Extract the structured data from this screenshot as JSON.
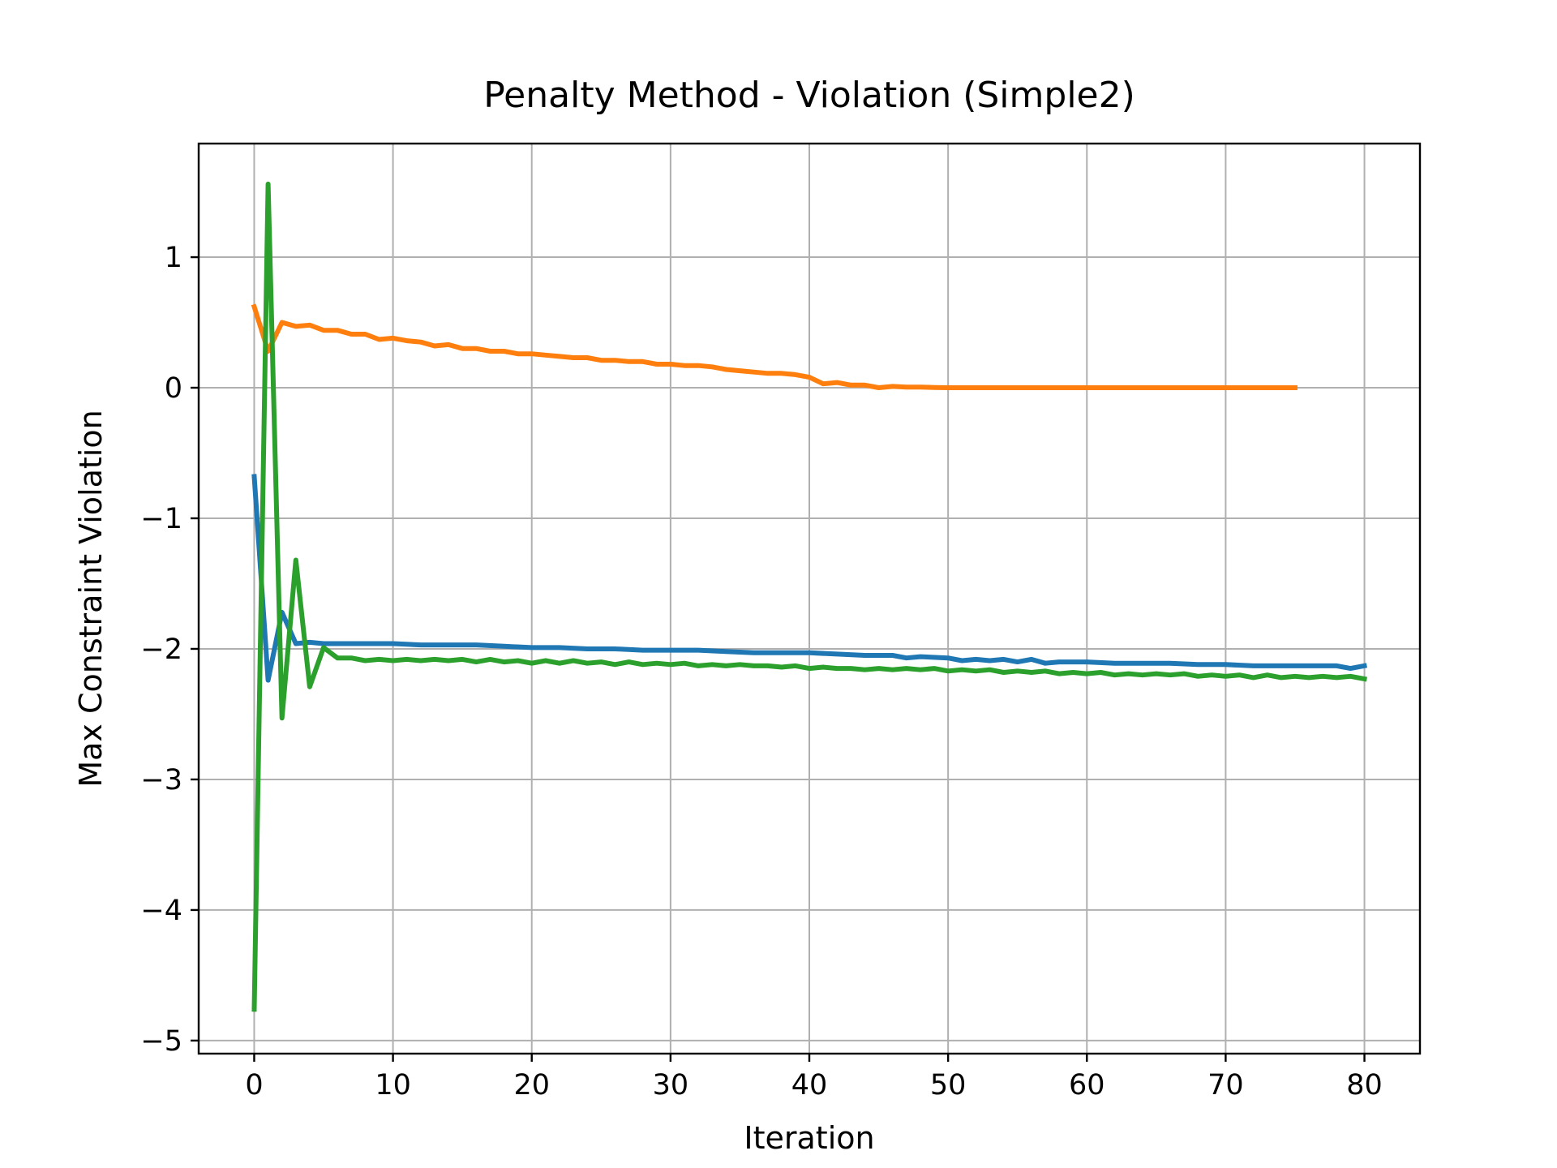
{
  "chart_data": {
    "type": "line",
    "title": "Penalty Method - Violation (Simple2)",
    "xlabel": "Iteration",
    "ylabel": "Max Constraint Violation",
    "xlim": [
      -4,
      84
    ],
    "ylim": [
      -5.1,
      1.87
    ],
    "xticks": [
      0,
      10,
      20,
      30,
      40,
      50,
      60,
      70,
      80
    ],
    "yticks": [
      -5,
      -4,
      -3,
      -2,
      -1,
      0,
      1
    ],
    "grid": true,
    "legend": "none",
    "series": [
      {
        "color": "#1f77b4",
        "x": [
          0,
          1,
          2,
          3,
          4,
          5,
          6,
          8,
          10,
          12,
          14,
          16,
          18,
          20,
          22,
          24,
          26,
          28,
          30,
          32,
          34,
          36,
          38,
          40,
          42,
          44,
          46,
          47,
          48,
          50,
          51,
          52,
          53,
          54,
          55,
          56,
          57,
          58,
          60,
          62,
          64,
          66,
          68,
          70,
          72,
          74,
          76,
          78,
          79,
          80
        ],
        "y": [
          -0.68,
          -2.24,
          -1.72,
          -1.96,
          -1.95,
          -1.96,
          -1.96,
          -1.96,
          -1.96,
          -1.97,
          -1.97,
          -1.97,
          -1.98,
          -1.99,
          -1.99,
          -2.0,
          -2.0,
          -2.01,
          -2.01,
          -2.01,
          -2.02,
          -2.03,
          -2.03,
          -2.03,
          -2.04,
          -2.05,
          -2.05,
          -2.07,
          -2.06,
          -2.07,
          -2.09,
          -2.08,
          -2.09,
          -2.08,
          -2.1,
          -2.08,
          -2.11,
          -2.1,
          -2.1,
          -2.11,
          -2.11,
          -2.11,
          -2.12,
          -2.12,
          -2.13,
          -2.13,
          -2.13,
          -2.13,
          -2.15,
          -2.13
        ]
      },
      {
        "color": "#ff7f0e",
        "x": [
          0,
          1,
          2,
          3,
          4,
          5,
          6,
          7,
          8,
          9,
          10,
          11,
          12,
          13,
          14,
          15,
          16,
          17,
          18,
          19,
          20,
          21,
          22,
          23,
          24,
          25,
          26,
          27,
          28,
          29,
          30,
          31,
          32,
          33,
          34,
          35,
          36,
          37,
          38,
          39,
          40,
          41,
          42,
          43,
          44,
          45,
          46,
          47,
          48,
          49,
          50,
          55,
          60,
          65,
          70,
          75
        ],
        "y": [
          0.62,
          0.28,
          0.5,
          0.47,
          0.48,
          0.44,
          0.44,
          0.41,
          0.41,
          0.37,
          0.38,
          0.36,
          0.35,
          0.32,
          0.33,
          0.3,
          0.3,
          0.28,
          0.28,
          0.26,
          0.26,
          0.25,
          0.24,
          0.23,
          0.23,
          0.21,
          0.21,
          0.2,
          0.2,
          0.18,
          0.18,
          0.17,
          0.17,
          0.16,
          0.14,
          0.13,
          0.12,
          0.11,
          0.11,
          0.1,
          0.08,
          0.03,
          0.04,
          0.02,
          0.02,
          0.0,
          0.01,
          0.005,
          0.005,
          0.002,
          0.0,
          0.0,
          0.0,
          0.0,
          0.0,
          0.0
        ]
      },
      {
        "color": "#2ca02c",
        "x": [
          0,
          1,
          2,
          3,
          4,
          5,
          6,
          7,
          8,
          9,
          10,
          11,
          12,
          13,
          14,
          15,
          16,
          17,
          18,
          19,
          20,
          21,
          22,
          23,
          24,
          25,
          26,
          27,
          28,
          29,
          30,
          31,
          32,
          33,
          34,
          35,
          36,
          37,
          38,
          39,
          40,
          41,
          42,
          43,
          44,
          45,
          46,
          47,
          48,
          49,
          50,
          51,
          52,
          53,
          54,
          55,
          56,
          57,
          58,
          59,
          60,
          61,
          62,
          63,
          64,
          65,
          66,
          67,
          68,
          69,
          70,
          71,
          72,
          73,
          74,
          75,
          76,
          77,
          78,
          79,
          80
        ],
        "y": [
          -4.76,
          1.56,
          -2.53,
          -1.32,
          -2.29,
          -1.99,
          -2.07,
          -2.07,
          -2.09,
          -2.08,
          -2.09,
          -2.08,
          -2.09,
          -2.08,
          -2.09,
          -2.08,
          -2.1,
          -2.08,
          -2.1,
          -2.09,
          -2.11,
          -2.09,
          -2.11,
          -2.09,
          -2.11,
          -2.1,
          -2.12,
          -2.1,
          -2.12,
          -2.11,
          -2.12,
          -2.11,
          -2.13,
          -2.12,
          -2.13,
          -2.12,
          -2.13,
          -2.13,
          -2.14,
          -2.13,
          -2.15,
          -2.14,
          -2.15,
          -2.15,
          -2.16,
          -2.15,
          -2.16,
          -2.15,
          -2.16,
          -2.15,
          -2.17,
          -2.16,
          -2.17,
          -2.16,
          -2.18,
          -2.17,
          -2.18,
          -2.17,
          -2.19,
          -2.18,
          -2.19,
          -2.18,
          -2.2,
          -2.19,
          -2.2,
          -2.19,
          -2.2,
          -2.19,
          -2.21,
          -2.2,
          -2.21,
          -2.2,
          -2.22,
          -2.2,
          -2.22,
          -2.21,
          -2.22,
          -2.21,
          -2.22,
          -2.21,
          -2.23
        ]
      }
    ]
  }
}
